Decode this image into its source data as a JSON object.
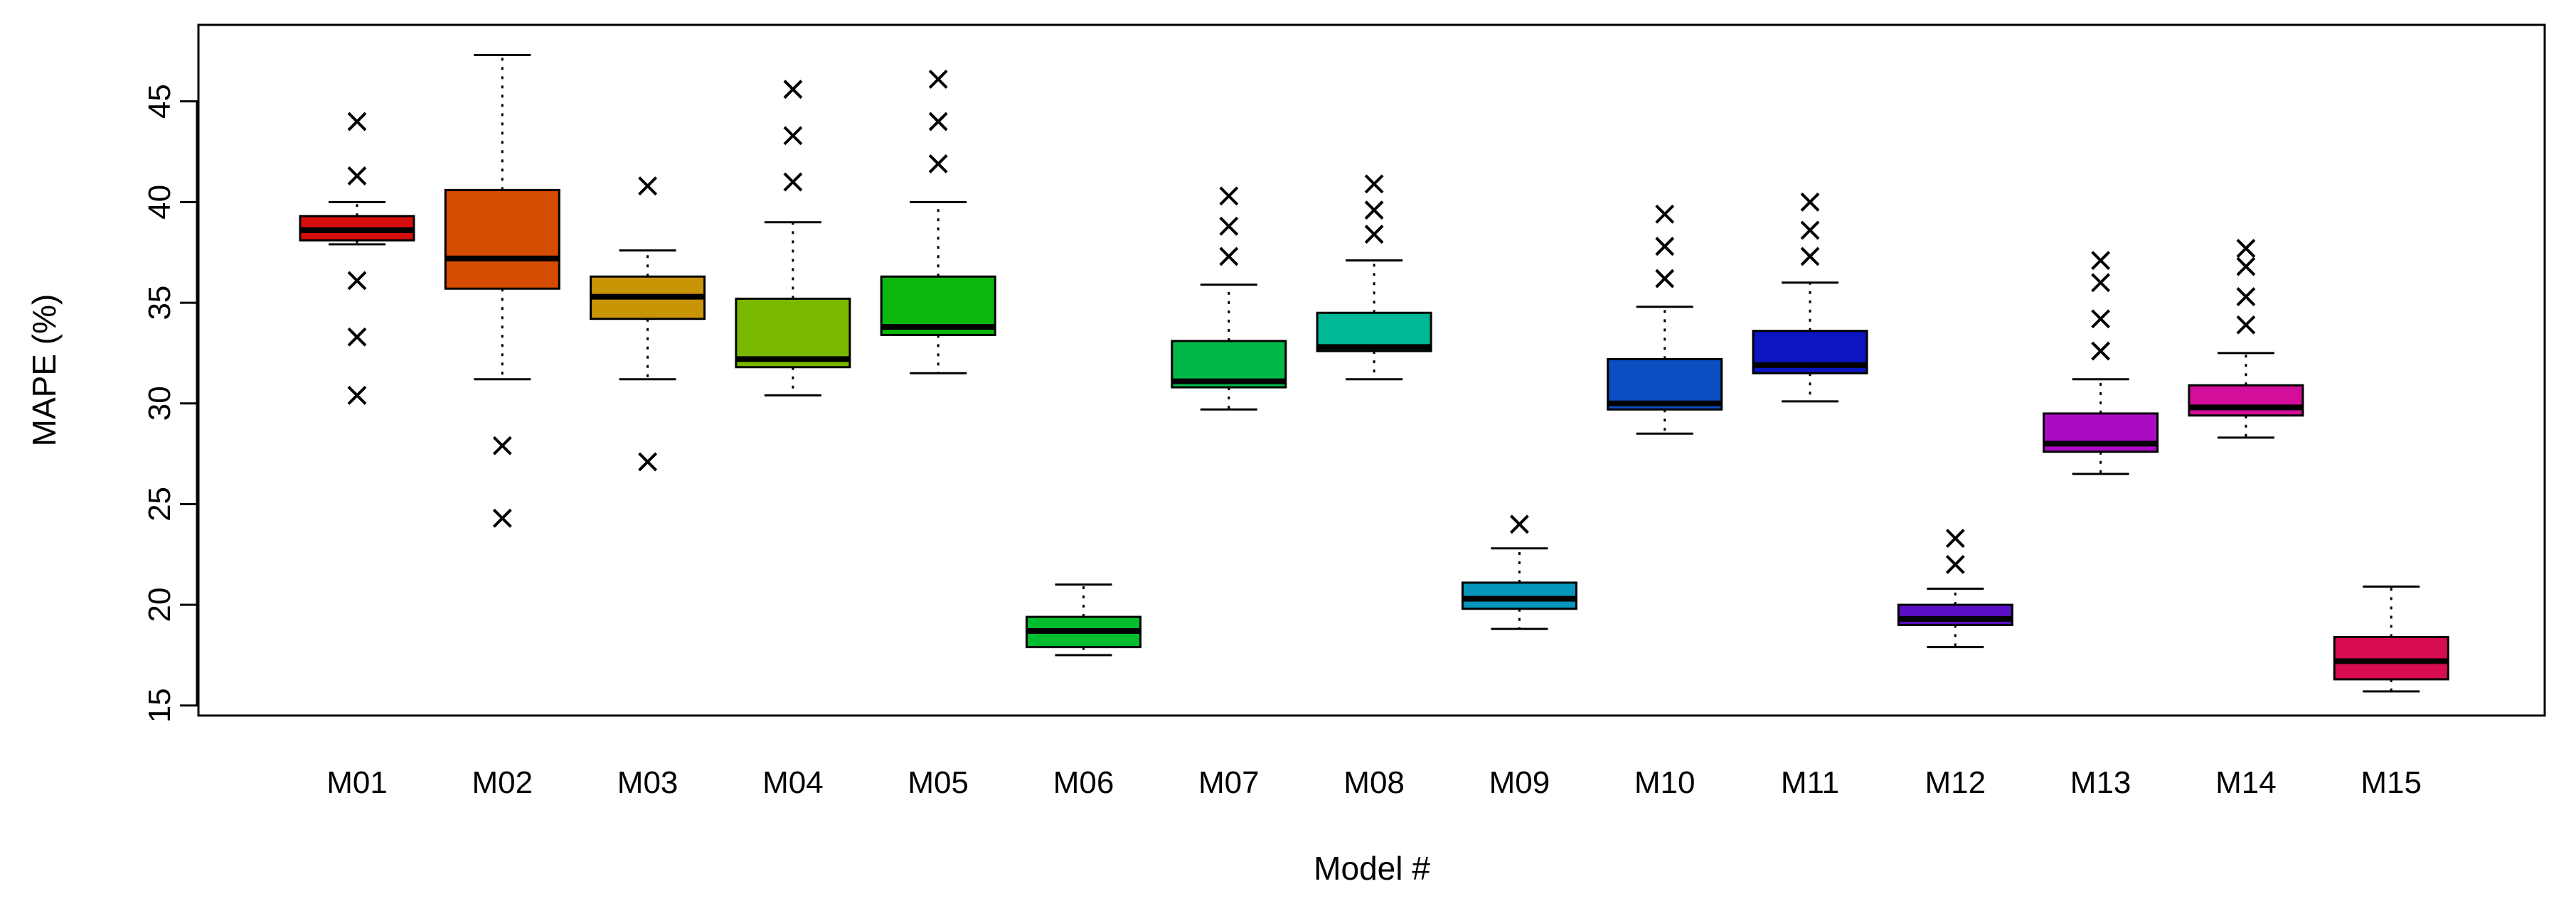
{
  "chart_data": {
    "type": "boxplot",
    "title": "",
    "xlabel": "Model #",
    "ylabel": "MAPE (%)",
    "ylim": [
      14.5,
      48.8
    ],
    "yticks": [
      15,
      20,
      25,
      30,
      35,
      40,
      45
    ],
    "ytick_labels": [
      "15",
      "20",
      "25",
      "30",
      "35",
      "40",
      "45"
    ],
    "grid": false,
    "outlier_marker": "×",
    "categories": [
      "M01",
      "M02",
      "M03",
      "M04",
      "M05",
      "M06",
      "M07",
      "M08",
      "M09",
      "M10",
      "M11",
      "M12",
      "M13",
      "M14",
      "M15"
    ],
    "boxes": [
      {
        "name": "M01",
        "color": "#d70e0e",
        "whisker_low": 37.9,
        "q1": 38.1,
        "median": 38.6,
        "q3": 39.3,
        "whisker_high": 40.0,
        "outliers": [
          30.4,
          33.3,
          36.1,
          41.3,
          44.0
        ]
      },
      {
        "name": "M02",
        "color": "#d54b00",
        "whisker_low": 31.2,
        "q1": 35.7,
        "median": 37.2,
        "q3": 40.6,
        "whisker_high": 47.3,
        "outliers": [
          24.3,
          27.9
        ]
      },
      {
        "name": "M03",
        "color": "#c99405",
        "whisker_low": 31.2,
        "q1": 34.2,
        "median": 35.3,
        "q3": 36.3,
        "whisker_high": 37.6,
        "outliers": [
          27.1,
          40.8
        ]
      },
      {
        "name": "M04",
        "color": "#7ab800",
        "whisker_low": 30.4,
        "q1": 31.8,
        "median": 32.2,
        "q3": 35.2,
        "whisker_high": 39.0,
        "outliers": [
          41.0,
          43.3,
          45.6
        ]
      },
      {
        "name": "M05",
        "color": "#0cb80c",
        "whisker_low": 31.5,
        "q1": 33.4,
        "median": 33.8,
        "q3": 36.3,
        "whisker_high": 40.0,
        "outliers": [
          41.9,
          44.0,
          46.1
        ]
      },
      {
        "name": "M06",
        "color": "#00be2e",
        "whisker_low": 17.5,
        "q1": 17.9,
        "median": 18.7,
        "q3": 19.4,
        "whisker_high": 21.0,
        "outliers": []
      },
      {
        "name": "M07",
        "color": "#00b84a",
        "whisker_low": 29.7,
        "q1": 30.8,
        "median": 31.1,
        "q3": 33.1,
        "whisker_high": 35.9,
        "outliers": [
          37.3,
          38.8,
          40.3
        ]
      },
      {
        "name": "M08",
        "color": "#00b894",
        "whisker_low": 31.2,
        "q1": 32.6,
        "median": 32.8,
        "q3": 34.5,
        "whisker_high": 37.1,
        "outliers": [
          38.4,
          39.6,
          40.9
        ]
      },
      {
        "name": "M09",
        "color": "#0696bc",
        "whisker_low": 18.8,
        "q1": 19.8,
        "median": 20.3,
        "q3": 21.1,
        "whisker_high": 22.8,
        "outliers": [
          24.0
        ]
      },
      {
        "name": "M10",
        "color": "#0a4ec2",
        "whisker_low": 28.5,
        "q1": 29.7,
        "median": 30.0,
        "q3": 32.2,
        "whisker_high": 34.8,
        "outliers": [
          36.2,
          37.8,
          39.4
        ]
      },
      {
        "name": "M11",
        "color": "#0b15c0",
        "whisker_low": 30.1,
        "q1": 31.5,
        "median": 31.9,
        "q3": 33.6,
        "whisker_high": 36.0,
        "outliers": [
          37.3,
          38.6,
          40.0
        ]
      },
      {
        "name": "M12",
        "color": "#5a0fc4",
        "whisker_low": 17.9,
        "q1": 19.0,
        "median": 19.3,
        "q3": 20.0,
        "whisker_high": 20.8,
        "outliers": [
          22.0,
          23.3
        ]
      },
      {
        "name": "M13",
        "color": "#ac0bc4",
        "whisker_low": 26.5,
        "q1": 27.6,
        "median": 28.0,
        "q3": 29.5,
        "whisker_high": 31.2,
        "outliers": [
          32.6,
          34.2,
          36.0,
          37.1
        ]
      },
      {
        "name": "M14",
        "color": "#d40e9a",
        "whisker_low": 28.3,
        "q1": 29.4,
        "median": 29.8,
        "q3": 30.9,
        "whisker_high": 32.5,
        "outliers": [
          33.9,
          35.3,
          36.8,
          37.7
        ]
      },
      {
        "name": "M15",
        "color": "#d80c50",
        "whisker_low": 15.7,
        "q1": 16.3,
        "median": 17.2,
        "q3": 18.4,
        "whisker_high": 20.9,
        "outliers": []
      }
    ]
  }
}
